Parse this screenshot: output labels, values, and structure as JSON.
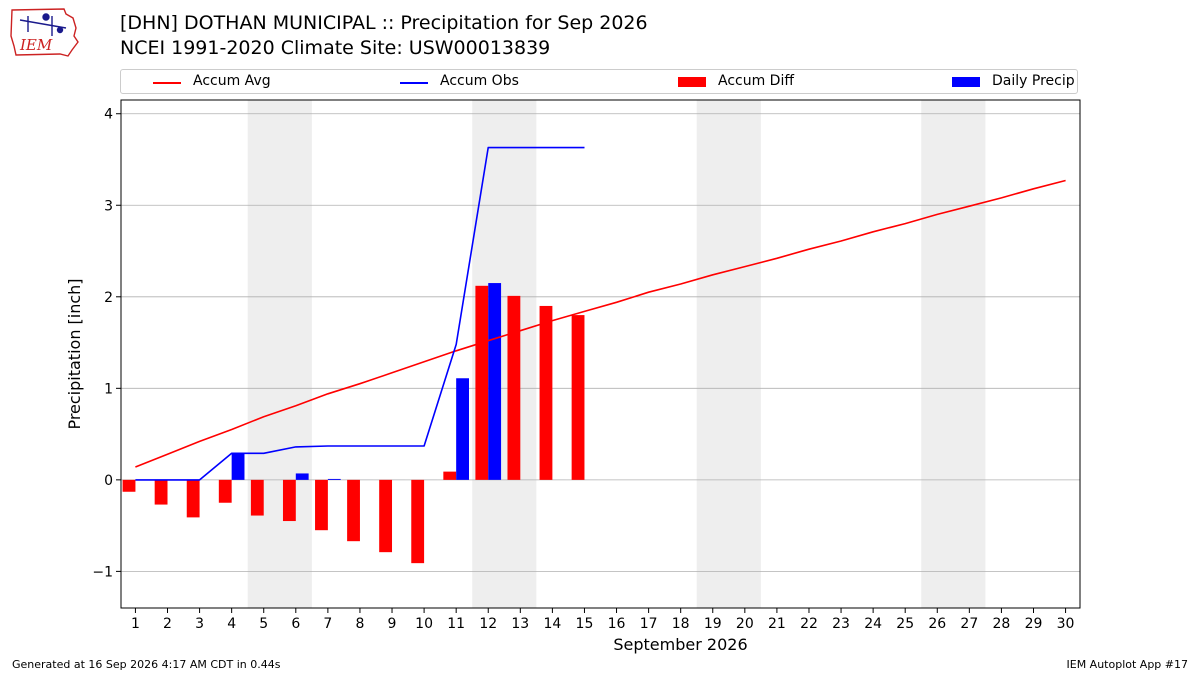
{
  "header": {
    "logo_text": "IEM",
    "title_line1": "[DHN] DOTHAN MUNICIPAL :: Precipitation for Sep 2026",
    "title_line2": "NCEI 1991-2020 Climate Site: USW00013839"
  },
  "footer": {
    "left": "Generated at 16 Sep 2026 4:17 AM CDT in 0.44s",
    "right": "IEM Autoplot App #17"
  },
  "colors": {
    "avg": "#ff0000",
    "obs": "#0000ff",
    "diff": "#ff0000",
    "daily": "#0000ff",
    "weekend_shade": "#eeeeee",
    "grid": "#b0b0b0"
  },
  "chart_data": {
    "type": "bar",
    "xlabel": "September 2026",
    "ylabel": "Precipitation [inch]",
    "ylim": [
      -1.4,
      4.15
    ],
    "yticks": [
      -1,
      0,
      1,
      2,
      3,
      4
    ],
    "ytick_labels": [
      "−1",
      "0",
      "1",
      "2",
      "3",
      "4"
    ],
    "grid": true,
    "legend_placement": "top",
    "days": [
      1,
      2,
      3,
      4,
      5,
      6,
      7,
      8,
      9,
      10,
      11,
      12,
      13,
      14,
      15,
      16,
      17,
      18,
      19,
      20,
      21,
      22,
      23,
      24,
      25,
      26,
      27,
      28,
      29,
      30
    ],
    "weekend_spans": [
      [
        5,
        6
      ],
      [
        12,
        13
      ],
      [
        19,
        20
      ],
      [
        26,
        27
      ]
    ],
    "series": [
      {
        "name": "Accum Avg",
        "kind": "line",
        "x": [
          1,
          2,
          3,
          4,
          5,
          6,
          7,
          8,
          9,
          10,
          11,
          12,
          13,
          14,
          15,
          16,
          17,
          18,
          19,
          20,
          21,
          22,
          23,
          24,
          25,
          26,
          27,
          28,
          29,
          30
        ],
        "values": [
          0.14,
          0.28,
          0.42,
          0.55,
          0.69,
          0.81,
          0.94,
          1.05,
          1.17,
          1.29,
          1.41,
          1.52,
          1.63,
          1.74,
          1.84,
          1.94,
          2.05,
          2.14,
          2.24,
          2.33,
          2.42,
          2.52,
          2.61,
          2.71,
          2.8,
          2.9,
          2.99,
          3.08,
          3.18,
          3.27
        ]
      },
      {
        "name": "Accum Obs",
        "kind": "line",
        "x": [
          1,
          2,
          3,
          4,
          5,
          6,
          7,
          8,
          9,
          10,
          11,
          12,
          13,
          14,
          15
        ],
        "values": [
          0.0,
          0.0,
          0.0,
          0.29,
          0.29,
          0.36,
          0.37,
          0.37,
          0.37,
          0.37,
          1.48,
          3.63,
          3.63,
          3.63,
          3.63
        ]
      },
      {
        "name": "Accum Diff",
        "kind": "bar",
        "x": [
          1,
          2,
          3,
          4,
          5,
          6,
          7,
          8,
          9,
          10,
          11,
          12,
          13,
          14,
          15
        ],
        "values": [
          -0.13,
          -0.27,
          -0.41,
          -0.25,
          -0.39,
          -0.45,
          -0.55,
          -0.67,
          -0.79,
          -0.91,
          0.09,
          2.12,
          2.01,
          1.9,
          1.8
        ]
      },
      {
        "name": "Daily Precip",
        "kind": "bar",
        "x": [
          1,
          2,
          3,
          4,
          5,
          6,
          7,
          8,
          9,
          10,
          11,
          12,
          13,
          14,
          15
        ],
        "values": [
          0.0,
          0.0,
          0.0,
          0.29,
          0.0,
          0.07,
          0.01,
          0.0,
          0.0,
          0.0,
          1.11,
          2.15,
          0.0,
          0.0,
          0.0
        ]
      }
    ]
  }
}
